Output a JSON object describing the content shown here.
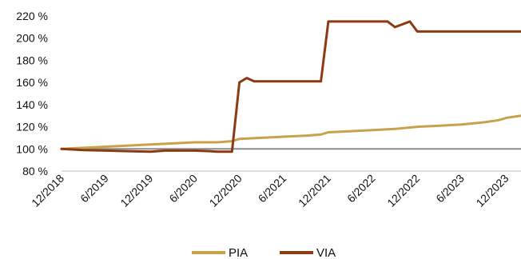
{
  "chart_data": {
    "type": "line",
    "title": "",
    "xlabel": "",
    "ylabel": "",
    "y_unit_suffix": " %",
    "ylim": [
      80,
      220
    ],
    "y_ticks": [
      80,
      100,
      120,
      140,
      160,
      180,
      200,
      220
    ],
    "x_start": "12/2018",
    "x_end": "2/2024",
    "x_ticks": [
      "12/2018",
      "6/2019",
      "12/2019",
      "6/2020",
      "12/2020",
      "6/2021",
      "12/2021",
      "6/2022",
      "12/2022",
      "6/2023",
      "12/2023"
    ],
    "reference_line": {
      "value": 100,
      "color": "#8c8c8c"
    },
    "legend": {
      "placement": "bottom-center"
    },
    "series": [
      {
        "name": "PIA",
        "color": "#c9a14a",
        "points": [
          [
            "12/2018",
            100
          ],
          [
            "3/2019",
            101
          ],
          [
            "6/2019",
            102
          ],
          [
            "9/2019",
            103
          ],
          [
            "12/2019",
            104
          ],
          [
            "3/2020",
            105
          ],
          [
            "6/2020",
            106
          ],
          [
            "9/2020",
            106
          ],
          [
            "11/2020",
            107
          ],
          [
            "12/2020",
            109
          ],
          [
            "3/2021",
            110
          ],
          [
            "6/2021",
            111
          ],
          [
            "9/2021",
            112
          ],
          [
            "11/2021",
            113
          ],
          [
            "12/2021",
            115
          ],
          [
            "3/2022",
            116
          ],
          [
            "6/2022",
            117
          ],
          [
            "9/2022",
            118
          ],
          [
            "12/2022",
            120
          ],
          [
            "3/2023",
            121
          ],
          [
            "6/2023",
            122
          ],
          [
            "9/2023",
            124
          ],
          [
            "11/2023",
            126
          ],
          [
            "12/2023",
            128
          ],
          [
            "2/2024",
            130
          ]
        ]
      },
      {
        "name": "VIA",
        "color": "#8b3a12",
        "points": [
          [
            "12/2018",
            100
          ],
          [
            "3/2019",
            99
          ],
          [
            "6/2019",
            98.5
          ],
          [
            "9/2019",
            98
          ],
          [
            "12/2019",
            97.5
          ],
          [
            "2/2020",
            98.5
          ],
          [
            "6/2020",
            98.5
          ],
          [
            "8/2020",
            98
          ],
          [
            "9/2020",
            97.5
          ],
          [
            "11/2020",
            97.5
          ],
          [
            "12/2020",
            160
          ],
          [
            "1/2021",
            164
          ],
          [
            "2/2021",
            161
          ],
          [
            "6/2021",
            161
          ],
          [
            "11/2021",
            161
          ],
          [
            "12/2021",
            215
          ],
          [
            "1/2022",
            215
          ],
          [
            "8/2022",
            215
          ],
          [
            "9/2022",
            210
          ],
          [
            "11/2022",
            215
          ],
          [
            "12/2022",
            206
          ],
          [
            "6/2023",
            206
          ],
          [
            "12/2023",
            206
          ],
          [
            "2/2024",
            206
          ]
        ]
      }
    ]
  }
}
